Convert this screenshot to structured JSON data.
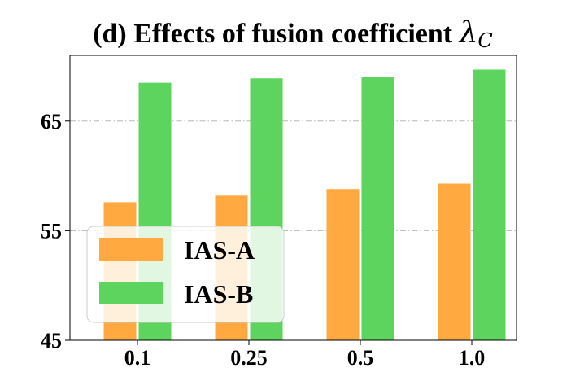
{
  "chart_data": {
    "type": "bar",
    "title_prefix": "(d) Effects of fusion coefficient ",
    "title_symbol": "λ",
    "title_subscript": "C",
    "categories": [
      "0.1",
      "0.25",
      "0.5",
      "1.0"
    ],
    "series": [
      {
        "name": "IAS-A",
        "color": "#FFA940",
        "values": [
          57.6,
          58.2,
          58.8,
          59.3
        ]
      },
      {
        "name": "IAS-B",
        "color": "#5DD45D",
        "values": [
          68.5,
          68.9,
          69.0,
          69.7
        ]
      }
    ],
    "ylim": [
      45,
      71
    ],
    "yticks": [
      "45",
      "55",
      "65"
    ],
    "ytick_values": [
      45,
      55,
      65
    ],
    "grid": true,
    "legend_position": "lower-left"
  }
}
